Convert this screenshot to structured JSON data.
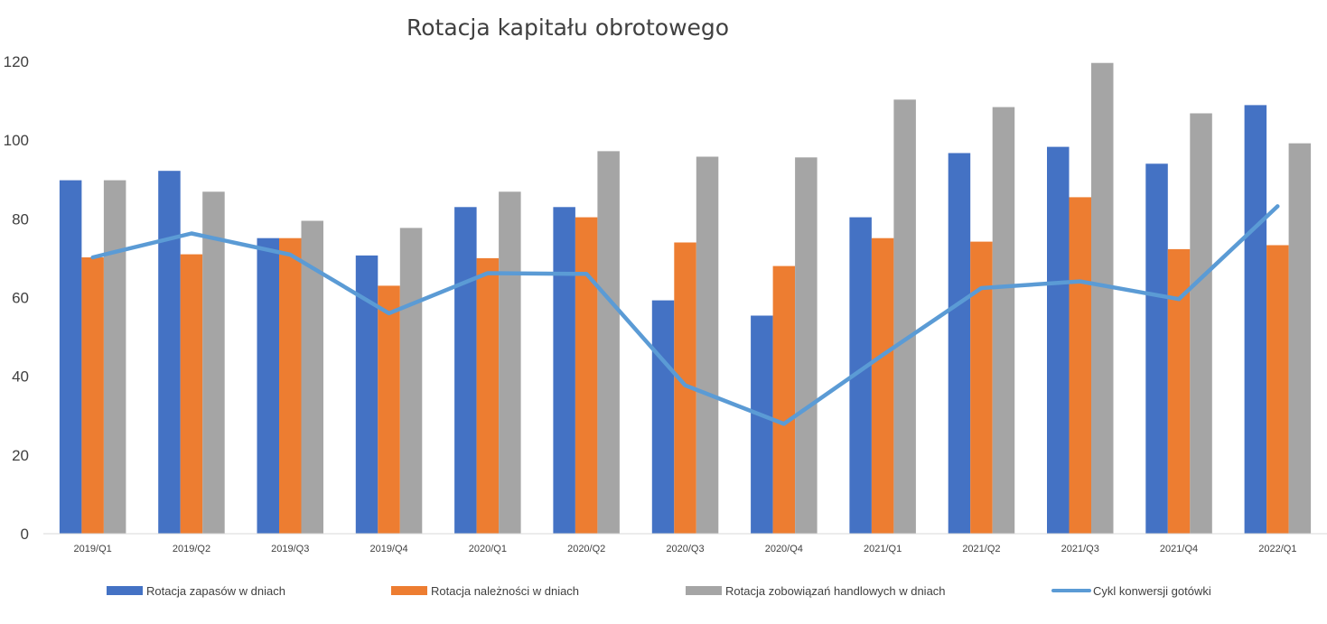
{
  "chart_data": {
    "type": "bar",
    "title": "Rotacja kapitału obrotowego",
    "categories": [
      "2019/Q1",
      "2019/Q2",
      "2019/Q3",
      "2019/Q4",
      "2020/Q1",
      "2020/Q2",
      "2020/Q3",
      "2020/Q4",
      "2021/Q1",
      "2021/Q2",
      "2021/Q3",
      "2021/Q4",
      "2022/Q1"
    ],
    "ylim": [
      0,
      120
    ],
    "yticks": [
      0,
      20,
      40,
      60,
      80,
      100,
      120
    ],
    "grid": false,
    "legend_position": "bottom",
    "series": [
      {
        "name": "Rotacja zapasów w dniach",
        "type": "bar",
        "color": "#4472C4",
        "values": [
          89.8,
          92.2,
          75.1,
          70.7,
          83.0,
          83.0,
          59.3,
          55.4,
          80.4,
          96.7,
          98.3,
          94.0,
          108.9
        ]
      },
      {
        "name": "Rotacja należności w dniach",
        "type": "bar",
        "color": "#ED7D31",
        "values": [
          70.2,
          71.0,
          75.1,
          63.0,
          70.0,
          80.4,
          74.0,
          68.0,
          75.1,
          74.2,
          85.5,
          72.3,
          73.3
        ]
      },
      {
        "name": "Rotacja zobowiązań handlowych w dniach",
        "type": "bar",
        "color": "#A5A5A5",
        "values": [
          89.8,
          86.9,
          79.5,
          77.7,
          86.9,
          97.2,
          95.8,
          95.6,
          110.3,
          108.4,
          119.6,
          106.8,
          99.2
        ]
      },
      {
        "name": "Cykl konwersji gotówki",
        "type": "line",
        "color": "#5B9BD5",
        "values": [
          70.2,
          76.3,
          70.9,
          56.0,
          66.2,
          66.0,
          37.7,
          27.9,
          45.4,
          62.4,
          64.1,
          59.6,
          83.2
        ]
      }
    ]
  }
}
